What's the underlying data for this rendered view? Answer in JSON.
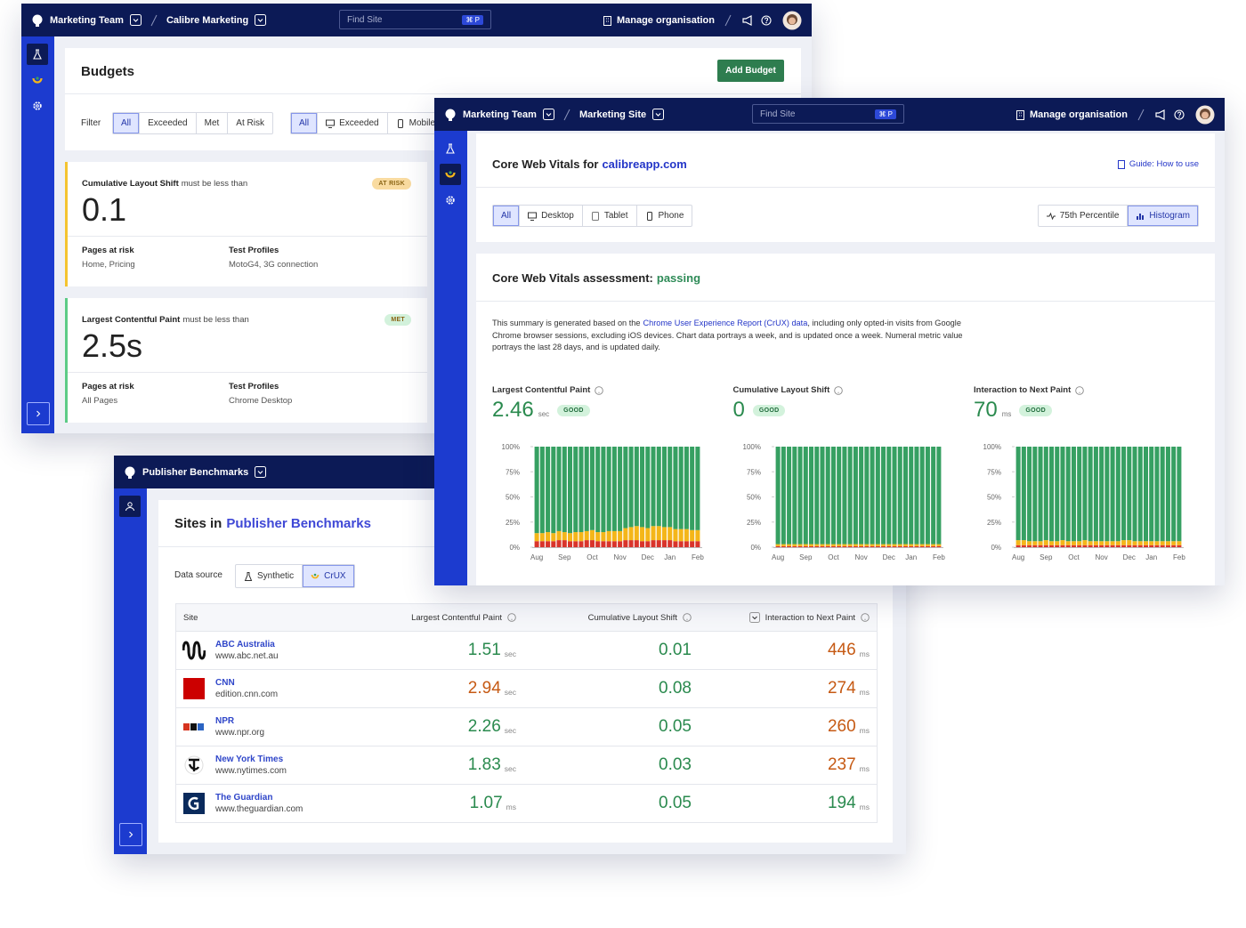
{
  "budgets_window": {
    "header": {
      "team": "Marketing Team",
      "site": "Calibre Marketing",
      "search": "Find Site",
      "shortcut": "⌘ P",
      "organisation": "Manage organisation"
    },
    "title": "Budgets",
    "add_button": "Add Budget",
    "filter_label": "Filter",
    "status_filters": [
      "All",
      "Exceeded",
      "Met",
      "At Risk"
    ],
    "device_filters": [
      "All",
      "Exceeded",
      "Mobile"
    ],
    "budgets": [
      {
        "metric": "Cumulative Layout Shift",
        "condition": "must be less than",
        "badge": "AT RISK",
        "badge_color": "#f9dba0",
        "accent": "#f4c430",
        "value": 0.1,
        "pages_label": "Pages at risk",
        "pages": "Home, Pricing",
        "profiles_label": "Test Profiles",
        "profiles": "MotoG4, 3G connection"
      },
      {
        "metric": "Largest Contentful Paint",
        "condition": "must be less than",
        "badge": "MET",
        "badge_color": "#d3f2dc",
        "accent": "#5ccb86",
        "value": "2.5s",
        "pages_label": "Pages at risk",
        "pages": "All Pages",
        "profiles_label": "Test Profiles",
        "profiles": "Chrome Desktop"
      }
    ]
  },
  "cwv_window": {
    "header": {
      "team": "Marketing Team",
      "site": "Marketing Site",
      "search": "Find Site",
      "shortcut": "⌘ P",
      "organisation": "Manage organisation"
    },
    "title_prefix": "Core Web Vitals for",
    "domain": "calibreapp.com",
    "guide": "Guide: How to use",
    "devices": [
      "All",
      "Desktop",
      "Tablet",
      "Phone"
    ],
    "views": [
      "75th Percentile",
      "Histogram"
    ],
    "assessment_prefix": "Core Web Vitals assessment:",
    "assessment": "passing",
    "summary_before": "This summary is generated based on the",
    "summary_link": "Chrome User Experience Report (CrUX) data",
    "summary_after": ", including only opted-in visits from Google Chrome browser sessions, excluding iOS devices. Chart data portrays a week, and is updated once a week. Numeral metric value portrays the last 28 days, and is updated daily.",
    "metrics": [
      {
        "name": "Largest Contentful Paint",
        "value": 2.46,
        "unit": "sec",
        "badge": "GOOD",
        "chart": {
          "type": "bar",
          "stacked": true,
          "categories": [
            "Aug",
            null,
            null,
            null,
            null,
            "Sep",
            null,
            null,
            null,
            null,
            "Oct",
            null,
            null,
            null,
            null,
            "Nov",
            null,
            null,
            null,
            null,
            "Dec",
            null,
            null,
            null,
            "Jan",
            null,
            null,
            null,
            null,
            "Feb"
          ],
          "series": [
            {
              "color": "#d9342b",
              "values": [
                6,
                6,
                6,
                6,
                7,
                7,
                6,
                6,
                6,
                7,
                7,
                6,
                6,
                6,
                6,
                6,
                7,
                7,
                7,
                6,
                6,
                7,
                7,
                7,
                7,
                6,
                6,
                6,
                6,
                6
              ]
            },
            {
              "color": "#f4b619",
              "values": [
                8,
                8,
                9,
                8,
                9,
                8,
                8,
                9,
                9,
                9,
                10,
                9,
                9,
                10,
                10,
                10,
                12,
                13,
                14,
                14,
                13,
                14,
                14,
                13,
                13,
                12,
                12,
                12,
                11,
                11
              ]
            },
            {
              "color": "#36a062",
              "values": [
                86,
                86,
                85,
                86,
                84,
                85,
                86,
                85,
                85,
                84,
                83,
                85,
                85,
                84,
                84,
                84,
                81,
                80,
                79,
                80,
                81,
                79,
                79,
                80,
                80,
                82,
                82,
                82,
                83,
                83
              ]
            }
          ],
          "ylim": [
            0,
            100
          ],
          "yticks": [
            {
              "value": 0,
              "label": "0%"
            },
            {
              "value": 25,
              "label": "25%"
            },
            {
              "value": 50,
              "label": "50%"
            },
            {
              "value": 75,
              "label": "75%"
            },
            {
              "value": 100,
              "label": "100%"
            }
          ]
        }
      },
      {
        "name": "Cumulative Layout Shift",
        "value": 0,
        "badge": "GOOD",
        "chart": {
          "type": "bar",
          "stacked": true,
          "categories": [
            "Aug",
            null,
            null,
            null,
            null,
            "Sep",
            null,
            null,
            null,
            null,
            "Oct",
            null,
            null,
            null,
            null,
            "Nov",
            null,
            null,
            null,
            null,
            "Dec",
            null,
            null,
            null,
            "Jan",
            null,
            null,
            null,
            null,
            "Feb"
          ],
          "series": [
            {
              "color": "#d9342b",
              "values": [
                1,
                1,
                1,
                1,
                1,
                1,
                1,
                1,
                1,
                1,
                1,
                1,
                1,
                1,
                1,
                1,
                1,
                1,
                1,
                1,
                1,
                1,
                1,
                1,
                1,
                1,
                1,
                1,
                1,
                1
              ]
            },
            {
              "color": "#f4b619",
              "values": [
                2,
                2,
                2,
                2,
                2,
                2,
                2,
                2,
                2,
                2,
                2,
                2,
                2,
                2,
                2,
                2,
                2,
                2,
                2,
                2,
                2,
                2,
                2,
                2,
                2,
                2,
                2,
                2,
                2,
                2
              ]
            },
            {
              "color": "#36a062",
              "values": [
                97,
                97,
                97,
                97,
                97,
                97,
                97,
                97,
                97,
                97,
                97,
                97,
                97,
                97,
                97,
                97,
                97,
                97,
                97,
                97,
                97,
                97,
                97,
                97,
                97,
                97,
                97,
                97,
                97,
                97
              ]
            }
          ],
          "ylim": [
            0,
            100
          ],
          "yticks": [
            {
              "value": 0,
              "label": "0%"
            },
            {
              "value": 25,
              "label": "25%"
            },
            {
              "value": 50,
              "label": "50%"
            },
            {
              "value": 75,
              "label": "75%"
            },
            {
              "value": 100,
              "label": "100%"
            }
          ]
        }
      },
      {
        "name": "Interaction to Next Paint",
        "value": 70,
        "unit": "ms",
        "badge": "GOOD",
        "chart": {
          "type": "bar",
          "stacked": true,
          "categories": [
            "Aug",
            null,
            null,
            null,
            null,
            "Sep",
            null,
            null,
            null,
            null,
            "Oct",
            null,
            null,
            null,
            null,
            "Nov",
            null,
            null,
            null,
            null,
            "Dec",
            null,
            null,
            null,
            "Jan",
            null,
            null,
            null,
            null,
            "Feb"
          ],
          "series": [
            {
              "color": "#d9342b",
              "values": [
                2,
                2,
                2,
                2,
                2,
                2,
                2,
                2,
                2,
                2,
                2,
                2,
                2,
                2,
                2,
                2,
                2,
                2,
                2,
                2,
                2,
                2,
                2,
                2,
                2,
                2,
                2,
                2,
                2,
                2
              ]
            },
            {
              "color": "#f4b619",
              "values": [
                5,
                5,
                4,
                4,
                4,
                5,
                4,
                4,
                5,
                4,
                4,
                4,
                5,
                4,
                4,
                4,
                4,
                4,
                4,
                5,
                5,
                4,
                4,
                4,
                4,
                4,
                4,
                4,
                4,
                4
              ]
            },
            {
              "color": "#36a062",
              "values": [
                93,
                93,
                94,
                94,
                94,
                93,
                94,
                94,
                93,
                94,
                94,
                94,
                93,
                94,
                94,
                94,
                94,
                94,
                94,
                93,
                93,
                94,
                94,
                94,
                94,
                94,
                94,
                94,
                94,
                94
              ]
            }
          ],
          "ylim": [
            0,
            100
          ],
          "yticks": [
            {
              "value": 0,
              "label": "0%"
            },
            {
              "value": 25,
              "label": "25%"
            },
            {
              "value": 50,
              "label": "50%"
            },
            {
              "value": 75,
              "label": "75%"
            },
            {
              "value": 100,
              "label": "100%"
            }
          ]
        }
      }
    ]
  },
  "publisher_window": {
    "header": {
      "team": "Publisher Benchmarks"
    },
    "title_prefix": "Sites in",
    "collection": "Publisher Benchmarks",
    "data_source_label": "Data source",
    "sources": [
      "Synthetic",
      "CrUX"
    ],
    "table": {
      "columns": [
        "Site",
        "Largest Contentful Paint",
        "Cumulative Layout Shift",
        "Interaction to Next Paint"
      ],
      "rows": [
        {
          "name": "ABC Australia",
          "url": "www.abc.net.au",
          "lcp": 1.51,
          "lcp_unit": "sec",
          "lcp_color": "#2a8a4e",
          "cls": 0.01,
          "cls_color": "#2a8a4e",
          "inp": 446,
          "inp_unit": "ms",
          "inp_color": "#c65a14"
        },
        {
          "name": "CNN",
          "url": "edition.cnn.com",
          "lcp": 2.94,
          "lcp_unit": "sec",
          "lcp_color": "#c65a14",
          "cls": 0.08,
          "cls_color": "#2a8a4e",
          "inp": 274,
          "inp_unit": "ms",
          "inp_color": "#c65a14"
        },
        {
          "name": "NPR",
          "url": "www.npr.org",
          "lcp": 2.26,
          "lcp_unit": "sec",
          "lcp_color": "#2a8a4e",
          "cls": 0.05,
          "cls_color": "#2a8a4e",
          "inp": 260,
          "inp_unit": "ms",
          "inp_color": "#c65a14"
        },
        {
          "name": "New York Times",
          "url": "www.nytimes.com",
          "lcp": 1.83,
          "lcp_unit": "sec",
          "lcp_color": "#2a8a4e",
          "cls": 0.03,
          "cls_color": "#2a8a4e",
          "inp": 237,
          "inp_unit": "ms",
          "inp_color": "#c65a14"
        },
        {
          "name": "The Guardian",
          "url": "www.theguardian.com",
          "lcp": 1.07,
          "lcp_unit": "ms",
          "lcp_color": "#2a8a4e",
          "cls": 0.05,
          "cls_color": "#2a8a4e",
          "inp": 194,
          "inp_unit": "ms",
          "inp_color": "#2a8a4e"
        }
      ]
    }
  }
}
